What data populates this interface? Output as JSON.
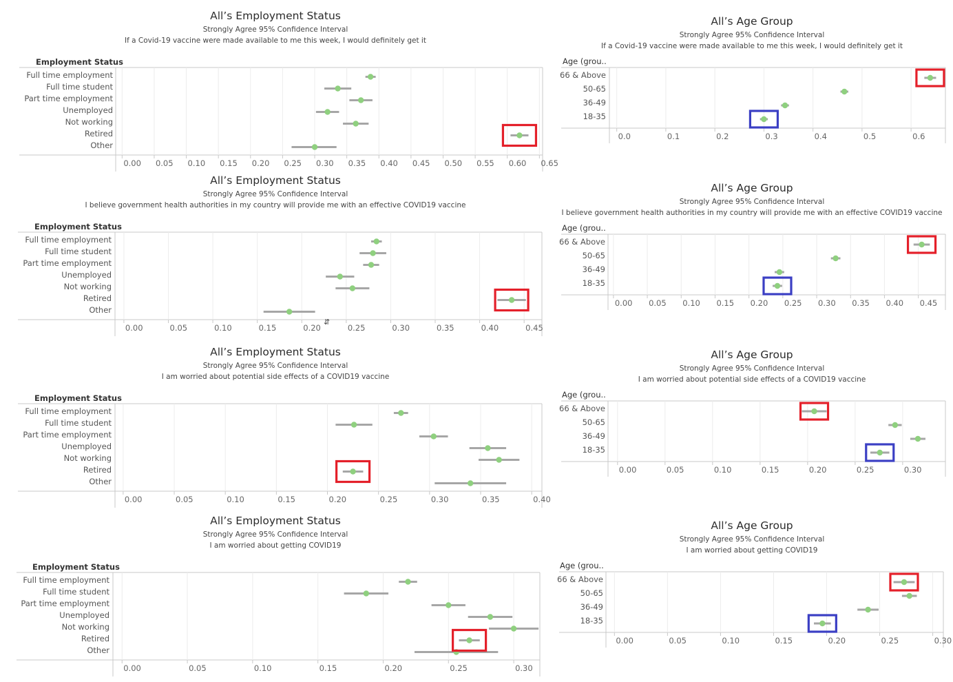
{
  "colors": {
    "point": "#8fd07f",
    "interval": "#a6a6a6",
    "hl_red": "#e4202a",
    "hl_blue": "#3b3fc4",
    "grid": "#ececec",
    "axis": "#c8c8c8"
  },
  "labels": {
    "prefix": "All’s",
    "employment_title": "Employment Status",
    "age_title": "Age Group",
    "employment_header": "Employment Status",
    "age_header": "Age (grou..",
    "subtitle": "Strongly Agree 95% Confidence Interval"
  },
  "chart_data": [
    {
      "type": "scatter",
      "title": "All’s Employment Status",
      "subtitle": "Strongly Agree 95% Confidence Interval",
      "question": "If a Covid-19 vaccine were made available to me this week, I would definitely get it",
      "dimension": "Employment Status",
      "categories": [
        "Full time employment",
        "Full time student",
        "Part time employment",
        "Unemployed",
        "Not working",
        "Retired",
        "Other"
      ],
      "estimate": [
        0.387,
        0.336,
        0.372,
        0.32,
        0.364,
        0.619,
        0.3
      ],
      "ci_low": [
        0.379,
        0.315,
        0.354,
        0.302,
        0.344,
        0.605,
        0.264
      ],
      "ci_high": [
        0.395,
        0.357,
        0.39,
        0.338,
        0.384,
        0.633,
        0.334
      ],
      "xlim": [
        -0.01,
        0.655
      ],
      "ticks": [
        "0.00",
        "0.05",
        "0.10",
        "0.15",
        "0.20",
        "0.25",
        "0.30",
        "0.35",
        "0.40",
        "0.45",
        "0.50",
        "0.55",
        "0.60",
        "0.65"
      ],
      "highlights": [
        {
          "category": "Retired",
          "color": "red"
        }
      ]
    },
    {
      "type": "scatter",
      "title": "All’s Age Group",
      "subtitle": "Strongly Agree 95% Confidence Interval",
      "question": "If a Covid-19 vaccine were made available to me this week, I would definitely get it",
      "dimension": "Age (grou..",
      "categories": [
        "66 & Above",
        "50-65",
        "36-49",
        "18-35"
      ],
      "estimate": [
        0.639,
        0.464,
        0.343,
        0.3
      ],
      "ci_low": [
        0.627,
        0.456,
        0.335,
        0.292
      ],
      "ci_high": [
        0.651,
        0.472,
        0.351,
        0.308
      ],
      "xlim": [
        -0.015,
        0.67
      ],
      "ticks": [
        "0.0",
        "0.1",
        "0.2",
        "0.3",
        "0.4",
        "0.5",
        "0.6"
      ],
      "highlights": [
        {
          "category": "66 & Above",
          "color": "red"
        },
        {
          "category": "18-35",
          "color": "blue"
        }
      ]
    },
    {
      "type": "scatter",
      "title": "All’s Employment Status",
      "subtitle": "Strongly Agree 95% Confidence Interval",
      "question": "I believe government health authorities in my country will provide me with an effective COVID19 vaccine",
      "dimension": "Employment Status",
      "categories": [
        "Full time employment",
        "Full time student",
        "Part time employment",
        "Unemployed",
        "Not working",
        "Retired",
        "Other"
      ],
      "estimate": [
        0.284,
        0.28,
        0.278,
        0.243,
        0.257,
        0.436,
        0.186
      ],
      "ci_low": [
        0.278,
        0.265,
        0.269,
        0.227,
        0.238,
        0.42,
        0.157
      ],
      "ci_high": [
        0.29,
        0.295,
        0.287,
        0.259,
        0.276,
        0.452,
        0.215
      ],
      "xlim": [
        -0.01,
        0.47
      ],
      "ticks": [
        "0.00",
        "0.05",
        "0.10",
        "0.15",
        "0.20",
        "0.25",
        "0.30",
        "0.35",
        "0.40",
        "0.45"
      ],
      "highlights": [
        {
          "category": "Retired",
          "color": "red"
        }
      ]
    },
    {
      "type": "scatter",
      "title": "All’s Age Group",
      "subtitle": "Strongly Agree 95% Confidence Interval",
      "question": "I believe government health authorities in my country will provide me with an effective COVID19 vaccine",
      "dimension": "Age (grou..",
      "categories": [
        "66 & Above",
        "50-65",
        "36-49",
        "18-35"
      ],
      "estimate": [
        0.455,
        0.328,
        0.245,
        0.242
      ],
      "ci_low": [
        0.443,
        0.321,
        0.238,
        0.235
      ],
      "ci_high": [
        0.467,
        0.335,
        0.252,
        0.249
      ],
      "xlim": [
        -0.008,
        0.49
      ],
      "ticks": [
        "0.00",
        "0.05",
        "0.10",
        "0.15",
        "0.20",
        "0.25",
        "0.30",
        "0.35",
        "0.40",
        "0.45"
      ],
      "highlights": [
        {
          "category": "66 & Above",
          "color": "red"
        },
        {
          "category": "18-35",
          "color": "blue"
        }
      ]
    },
    {
      "type": "scatter",
      "title": "All’s Employment Status",
      "subtitle": "Strongly Agree 95% Confidence Interval",
      "question": "I am worried about potential side effects of a COVID19 vaccine",
      "dimension": "Employment Status",
      "categories": [
        "Full time employment",
        "Full time student",
        "Part time employment",
        "Unemployed",
        "Not working",
        "Retired",
        "Other"
      ],
      "estimate": [
        0.272,
        0.226,
        0.304,
        0.357,
        0.368,
        0.225,
        0.34
      ],
      "ci_low": [
        0.265,
        0.208,
        0.29,
        0.339,
        0.348,
        0.215,
        0.305
      ],
      "ci_high": [
        0.279,
        0.244,
        0.318,
        0.375,
        0.388,
        0.235,
        0.375
      ],
      "xlim": [
        -0.008,
        0.41
      ],
      "ticks": [
        "0.00",
        "0.05",
        "0.10",
        "0.15",
        "0.20",
        "0.25",
        "0.30",
        "0.35",
        "0.40"
      ],
      "highlights": [
        {
          "category": "Retired",
          "color": "red"
        }
      ]
    },
    {
      "type": "scatter",
      "title": "All’s Age Group",
      "subtitle": "Strongly Agree 95% Confidence Interval",
      "question": "I am worried about potential side effects of a COVID19 vaccine",
      "dimension": "Age (grou..",
      "categories": [
        "66 & Above",
        "50-65",
        "36-49",
        "18-35"
      ],
      "estimate": [
        0.207,
        0.292,
        0.316,
        0.276
      ],
      "ci_low": [
        0.194,
        0.285,
        0.308,
        0.266
      ],
      "ci_high": [
        0.22,
        0.299,
        0.324,
        0.286
      ],
      "xlim": [
        -0.01,
        0.345
      ],
      "ticks": [
        "0.00",
        "0.05",
        "0.10",
        "0.15",
        "0.20",
        "0.25",
        "0.30"
      ],
      "highlights": [
        {
          "category": "66 & Above",
          "color": "red"
        },
        {
          "category": "18-35",
          "color": "blue"
        }
      ]
    },
    {
      "type": "scatter",
      "title": "All’s Employment Status",
      "subtitle": "Strongly Agree 95% Confidence Interval",
      "question": "I am worried about getting COVID19",
      "dimension": "Employment Status",
      "categories": [
        "Full time employment",
        "Full time student",
        "Part time employment",
        "Unemployed",
        "Not working",
        "Retired",
        "Other"
      ],
      "estimate": [
        0.219,
        0.187,
        0.25,
        0.282,
        0.3,
        0.266,
        0.256
      ],
      "ci_low": [
        0.212,
        0.17,
        0.237,
        0.265,
        0.281,
        0.258,
        0.224
      ],
      "ci_high": [
        0.226,
        0.204,
        0.263,
        0.299,
        0.319,
        0.274,
        0.288
      ],
      "xlim": [
        -0.007,
        0.32
      ],
      "ticks": [
        "0.00",
        "0.05",
        "0.10",
        "0.15",
        "0.20",
        "0.25",
        "0.30"
      ],
      "highlights": [
        {
          "category": "Retired",
          "color": "red"
        }
      ]
    },
    {
      "type": "scatter",
      "title": "All’s Age Group",
      "subtitle": "Strongly Agree 95% Confidence Interval",
      "question": "I am worried about getting COVID19",
      "dimension": "Age (grou..",
      "categories": [
        "66 & Above",
        "50-65",
        "36-49",
        "18-35"
      ],
      "estimate": [
        0.273,
        0.278,
        0.239,
        0.196
      ],
      "ci_low": [
        0.263,
        0.271,
        0.229,
        0.188
      ],
      "ci_high": [
        0.283,
        0.285,
        0.249,
        0.204
      ],
      "xlim": [
        -0.008,
        0.31
      ],
      "ticks": [
        "0.00",
        "0.05",
        "0.10",
        "0.15",
        "0.20",
        "0.25",
        "0.30"
      ],
      "highlights": [
        {
          "category": "66 & Above",
          "color": "red"
        },
        {
          "category": "18-35",
          "color": "blue"
        }
      ]
    }
  ]
}
